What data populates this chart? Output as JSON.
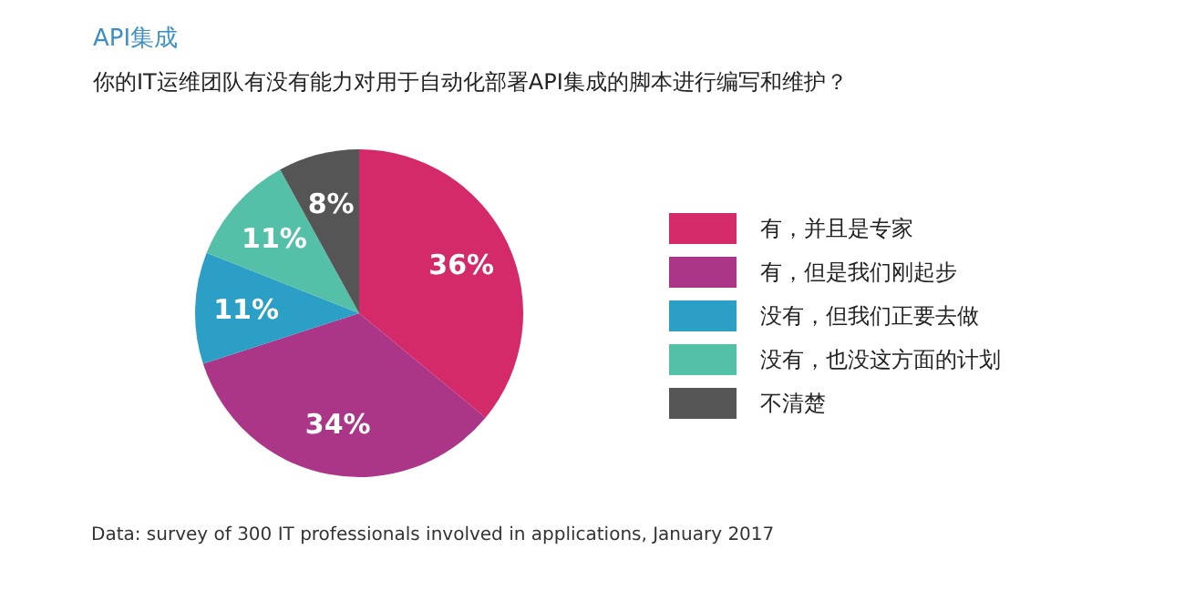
{
  "chart_data": {
    "type": "pie",
    "title": "API集成",
    "subtitle": "你的IT运维团队有没有能力对用于自动化部署API集成的脚本进行编写和维护？",
    "categories": [
      "有，并且是专家",
      "有，但是我们刚起步",
      "没有，但我们正要去做",
      "没有，也没这方面的计划",
      "不清楚"
    ],
    "values": [
      36,
      34,
      11,
      11,
      8
    ],
    "value_labels": [
      "36%",
      "34%",
      "11%",
      "11%",
      "8%"
    ],
    "colors": [
      "#d42a6a",
      "#ab3586",
      "#2b9fc6",
      "#55c0a8",
      "#555555"
    ],
    "legend": "right",
    "annotations": [
      "Data: survey of 300 IT professionals involved in applications, January 2017"
    ]
  }
}
